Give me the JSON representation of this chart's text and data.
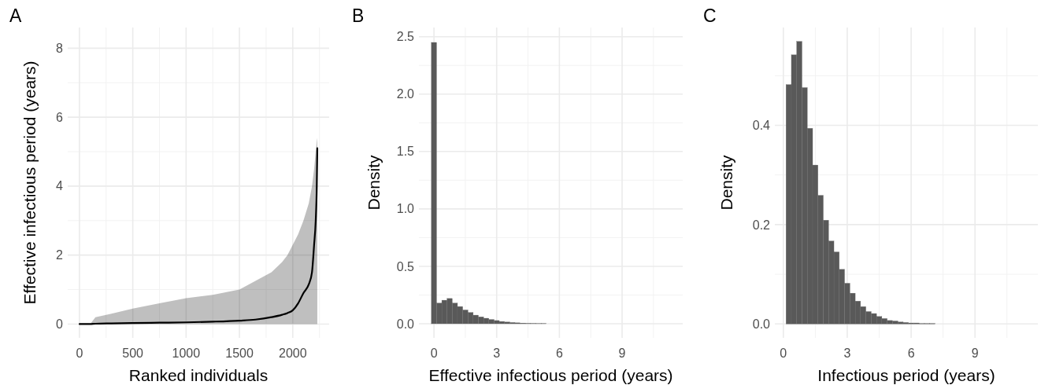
{
  "chart_data": [
    {
      "type": "line",
      "title": "A",
      "xlabel": "Ranked individuals",
      "ylabel": "Effective infectious period (years)",
      "xlim": [
        -110,
        2341
      ],
      "ylim": [
        -0.4,
        8.6
      ],
      "xticks": [
        0,
        500,
        1000,
        1500,
        2000
      ],
      "yticks": [
        0,
        2,
        4,
        6,
        8
      ],
      "grid": true,
      "series": [
        {
          "color": "#000000",
          "x": [
            1,
            100,
            150,
            300,
            500,
            750,
            1000,
            1250,
            1500,
            1650,
            1800,
            1900,
            1950,
            2000,
            2050,
            2100,
            2150,
            2180,
            2200,
            2215,
            2225,
            2230
          ],
          "values": [
            0,
            0,
            0.01,
            0.02,
            0.03,
            0.04,
            0.05,
            0.07,
            0.1,
            0.13,
            0.2,
            0.27,
            0.32,
            0.4,
            0.6,
            0.9,
            1.15,
            1.5,
            2.3,
            3.0,
            4.0,
            5.1
          ],
          "lower": [
            0,
            0,
            0,
            0,
            0,
            0,
            0,
            0,
            0,
            0,
            0,
            0,
            0,
            0,
            0,
            0,
            0,
            0,
            0,
            0,
            0,
            0
          ],
          "upper": [
            0,
            0,
            0.2,
            0.3,
            0.45,
            0.6,
            0.75,
            0.85,
            1.0,
            1.25,
            1.5,
            1.8,
            2.0,
            2.3,
            2.6,
            3.0,
            3.5,
            4.0,
            4.5,
            5.0,
            5.3,
            5.4
          ]
        }
      ]
    },
    {
      "type": "histogram",
      "title": "B",
      "xlabel": "Effective infectious period (years)",
      "ylabel": "Density",
      "xlim": [
        -0.72,
        11.9
      ],
      "ylim": [
        -0.123,
        2.58
      ],
      "xticks": [
        0,
        3,
        6,
        9
      ],
      "yticks": [
        {
          "value": 0,
          "label": "0.0"
        },
        0.5,
        {
          "value": 1,
          "label": "1.0"
        },
        1.5,
        {
          "value": 2,
          "label": "2.0"
        },
        2.5
      ],
      "grid": true,
      "color": "#595959",
      "bins": [
        -0.125,
        0.125,
        0.375,
        0.625,
        0.875,
        1.125,
        1.375,
        1.625,
        1.875,
        2.125,
        2.375,
        2.625,
        2.875,
        3.125,
        3.375,
        3.625,
        3.875,
        4.125,
        4.375,
        4.625,
        4.875,
        5.125,
        5.375,
        5.625,
        5.875,
        6.125,
        6.375,
        6.625,
        6.875,
        7.125,
        7.375,
        7.625,
        7.875,
        8.125,
        8.375,
        8.625,
        8.875,
        9.125,
        9.375,
        9.625,
        9.875,
        10.125,
        10.375,
        10.625,
        10.875,
        11.125,
        11.375
      ],
      "values": [
        2.45,
        0.18,
        0.205,
        0.22,
        0.18,
        0.15,
        0.12,
        0.098,
        0.075,
        0.06,
        0.048,
        0.037,
        0.028,
        0.02,
        0.015,
        0.011,
        0.008,
        0.006,
        0.004,
        0.003,
        0.002,
        0.002,
        0,
        0,
        0,
        0,
        0,
        0,
        0,
        0,
        0,
        0,
        0,
        0,
        0,
        0,
        0,
        0,
        0,
        0,
        0,
        0,
        0,
        0,
        0,
        0
      ]
    },
    {
      "type": "histogram",
      "title": "C",
      "xlabel": "Infectious period (years)",
      "ylabel": "Density",
      "xlim": [
        -0.4,
        11.95
      ],
      "ylim": [
        -0.028,
        0.597
      ],
      "xticks": [
        0,
        3,
        6,
        9
      ],
      "yticks": [
        {
          "value": 0,
          "label": "0.0"
        },
        {
          "value": 0.2,
          "label": "0.2"
        },
        {
          "value": 0.4,
          "label": "0.4"
        }
      ],
      "grid": true,
      "color": "#595959",
      "bins": [
        0.125,
        0.375,
        0.625,
        0.875,
        1.125,
        1.375,
        1.625,
        1.875,
        2.125,
        2.375,
        2.625,
        2.875,
        3.125,
        3.375,
        3.625,
        3.875,
        4.125,
        4.375,
        4.625,
        4.875,
        5.125,
        5.375,
        5.625,
        5.875,
        6.125,
        6.375,
        6.625,
        6.875,
        7.125,
        7.375,
        7.625,
        7.875,
        8.125,
        8.375,
        8.625,
        8.875,
        9.125,
        9.375,
        9.625,
        9.875,
        10.125,
        10.375,
        10.625,
        10.875,
        11.125,
        11.375
      ],
      "values": [
        0.482,
        0.542,
        0.569,
        0.476,
        0.394,
        0.32,
        0.259,
        0.209,
        0.167,
        0.145,
        0.11,
        0.082,
        0.062,
        0.046,
        0.035,
        0.025,
        0.021,
        0.015,
        0.011,
        0.007,
        0.006,
        0.004,
        0.003,
        0.002,
        0.002,
        0.001,
        0.001,
        0.001,
        0,
        0,
        0,
        0,
        0,
        0,
        0,
        0,
        0,
        0,
        0,
        0,
        0,
        0,
        0,
        0,
        0
      ]
    }
  ]
}
